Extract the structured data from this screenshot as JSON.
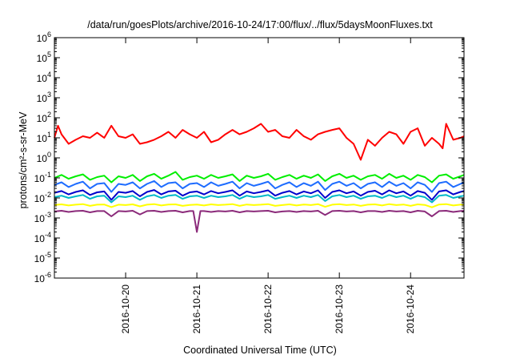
{
  "chart_data": {
    "type": "line",
    "title": "/data/run/goesPlots/archive/2016-10-24/17:00/flux/../flux/5daysMoonFluxes.txt",
    "xlabel": "Coordinated Universal Time (UTC)",
    "ylabel": "protons/cm²-s-sr-MeV",
    "yscale": "log",
    "ylim": [
      1e-06,
      1000000.0
    ],
    "xlim": [
      0.0,
      5.75
    ],
    "x_unit": "days from 2016-10-19 00:00 UTC",
    "x_ticks": [
      {
        "value": 1,
        "label": "2016-10-20"
      },
      {
        "value": 2,
        "label": "2016-10-21"
      },
      {
        "value": 3,
        "label": "2016-10-22"
      },
      {
        "value": 4,
        "label": "2016-10-23"
      },
      {
        "value": 5,
        "label": "2016-10-24"
      }
    ],
    "y_ticks": [
      {
        "value": 1e-06,
        "base": "10",
        "exp": "-6"
      },
      {
        "value": 1e-05,
        "base": "10",
        "exp": "-5"
      },
      {
        "value": 0.0001,
        "base": "10",
        "exp": "-4"
      },
      {
        "value": 0.001,
        "base": "10",
        "exp": "-3"
      },
      {
        "value": 0.01,
        "base": "10",
        "exp": "-2"
      },
      {
        "value": 0.1,
        "base": "10",
        "exp": "-1"
      },
      {
        "value": 1.0,
        "base": "10",
        "exp": "0"
      },
      {
        "value": 10.0,
        "base": "10",
        "exp": "1"
      },
      {
        "value": 100.0,
        "base": "10",
        "exp": "2"
      },
      {
        "value": 1000.0,
        "base": "10",
        "exp": "3"
      },
      {
        "value": 10000.0,
        "base": "10",
        "exp": "4"
      },
      {
        "value": 100000.0,
        "base": "10",
        "exp": "5"
      },
      {
        "value": 1000000.0,
        "base": "10",
        "exp": "6"
      }
    ],
    "grid": false,
    "legend": "none",
    "series": [
      {
        "color": "#ff0000",
        "x": [
          0.0,
          0.05,
          0.1,
          0.2,
          0.3,
          0.4,
          0.5,
          0.6,
          0.7,
          0.8,
          0.9,
          1.0,
          1.1,
          1.2,
          1.3,
          1.4,
          1.5,
          1.6,
          1.7,
          1.8,
          1.9,
          2.0,
          2.1,
          2.2,
          2.3,
          2.4,
          2.5,
          2.6,
          2.7,
          2.8,
          2.9,
          3.0,
          3.1,
          3.2,
          3.3,
          3.4,
          3.5,
          3.6,
          3.7,
          3.8,
          3.9,
          4.0,
          4.1,
          4.2,
          4.3,
          4.4,
          4.5,
          4.6,
          4.7,
          4.8,
          4.9,
          5.0,
          5.1,
          5.2,
          5.3,
          5.4,
          5.45,
          5.5,
          5.6,
          5.7,
          5.75
        ],
        "values": [
          10,
          40,
          15,
          5,
          8,
          12,
          10,
          18,
          10,
          40,
          12,
          10,
          15,
          5,
          6,
          8,
          12,
          20,
          10,
          25,
          15,
          10,
          20,
          6,
          8,
          15,
          25,
          15,
          20,
          30,
          50,
          20,
          25,
          12,
          10,
          25,
          12,
          8,
          15,
          20,
          25,
          30,
          10,
          5,
          0.8,
          8,
          4,
          10,
          20,
          15,
          5,
          20,
          30,
          4,
          10,
          5,
          3,
          50,
          8,
          10,
          12
        ]
      },
      {
        "color": "#00ee00",
        "x": [
          0.0,
          0.1,
          0.2,
          0.3,
          0.4,
          0.5,
          0.6,
          0.7,
          0.8,
          0.9,
          1.0,
          1.1,
          1.2,
          1.3,
          1.4,
          1.5,
          1.6,
          1.7,
          1.8,
          1.9,
          2.0,
          2.1,
          2.2,
          2.3,
          2.4,
          2.5,
          2.6,
          2.7,
          2.8,
          2.9,
          3.0,
          3.1,
          3.2,
          3.3,
          3.4,
          3.5,
          3.6,
          3.7,
          3.8,
          3.9,
          4.0,
          4.1,
          4.2,
          4.3,
          4.4,
          4.5,
          4.6,
          4.7,
          4.8,
          4.9,
          5.0,
          5.1,
          5.2,
          5.3,
          5.4,
          5.5,
          5.6,
          5.7,
          5.75
        ],
        "values": [
          0.1,
          0.14,
          0.09,
          0.12,
          0.15,
          0.08,
          0.11,
          0.13,
          0.06,
          0.12,
          0.1,
          0.14,
          0.07,
          0.12,
          0.16,
          0.09,
          0.13,
          0.2,
          0.08,
          0.11,
          0.13,
          0.09,
          0.14,
          0.1,
          0.12,
          0.15,
          0.07,
          0.13,
          0.1,
          0.12,
          0.16,
          0.08,
          0.11,
          0.14,
          0.09,
          0.13,
          0.1,
          0.15,
          0.07,
          0.12,
          0.16,
          0.1,
          0.13,
          0.08,
          0.12,
          0.14,
          0.09,
          0.16,
          0.1,
          0.13,
          0.08,
          0.14,
          0.11,
          0.06,
          0.13,
          0.15,
          0.09,
          0.12,
          0.14
        ]
      },
      {
        "color": "#1e6cff",
        "x": [
          0.0,
          0.1,
          0.2,
          0.3,
          0.4,
          0.5,
          0.6,
          0.7,
          0.8,
          0.9,
          1.0,
          1.1,
          1.2,
          1.3,
          1.4,
          1.5,
          1.6,
          1.7,
          1.8,
          1.9,
          2.0,
          2.1,
          2.2,
          2.3,
          2.4,
          2.5,
          2.6,
          2.7,
          2.8,
          2.9,
          3.0,
          3.1,
          3.2,
          3.3,
          3.4,
          3.5,
          3.6,
          3.7,
          3.8,
          3.9,
          4.0,
          4.1,
          4.2,
          4.3,
          4.4,
          4.5,
          4.6,
          4.7,
          4.8,
          4.9,
          5.0,
          5.1,
          5.2,
          5.3,
          5.4,
          5.5,
          5.6,
          5.7,
          5.75
        ],
        "values": [
          0.045,
          0.06,
          0.035,
          0.05,
          0.065,
          0.03,
          0.05,
          0.055,
          0.02,
          0.05,
          0.045,
          0.06,
          0.03,
          0.05,
          0.07,
          0.035,
          0.055,
          0.06,
          0.03,
          0.05,
          0.055,
          0.035,
          0.06,
          0.04,
          0.05,
          0.065,
          0.03,
          0.055,
          0.04,
          0.05,
          0.065,
          0.03,
          0.045,
          0.06,
          0.035,
          0.055,
          0.04,
          0.065,
          0.025,
          0.05,
          0.065,
          0.04,
          0.055,
          0.03,
          0.05,
          0.06,
          0.035,
          0.065,
          0.04,
          0.055,
          0.03,
          0.06,
          0.045,
          0.02,
          0.055,
          0.065,
          0.035,
          0.05,
          0.06
        ]
      },
      {
        "color": "#0000cc",
        "x": [
          0.0,
          0.1,
          0.2,
          0.3,
          0.4,
          0.5,
          0.6,
          0.7,
          0.8,
          0.9,
          1.0,
          1.1,
          1.2,
          1.3,
          1.4,
          1.5,
          1.6,
          1.7,
          1.8,
          1.9,
          2.0,
          2.1,
          2.2,
          2.3,
          2.4,
          2.5,
          2.6,
          2.7,
          2.8,
          2.9,
          3.0,
          3.1,
          3.2,
          3.3,
          3.4,
          3.5,
          3.6,
          3.7,
          3.8,
          3.9,
          4.0,
          4.1,
          4.2,
          4.3,
          4.4,
          4.5,
          4.6,
          4.7,
          4.8,
          4.9,
          5.0,
          5.1,
          5.2,
          5.3,
          5.4,
          5.5,
          5.6,
          5.7,
          5.75
        ],
        "values": [
          0.018,
          0.022,
          0.015,
          0.02,
          0.024,
          0.014,
          0.019,
          0.021,
          0.008,
          0.02,
          0.018,
          0.022,
          0.012,
          0.02,
          0.025,
          0.015,
          0.021,
          0.023,
          0.013,
          0.019,
          0.021,
          0.015,
          0.022,
          0.017,
          0.02,
          0.024,
          0.013,
          0.021,
          0.017,
          0.02,
          0.024,
          0.013,
          0.018,
          0.022,
          0.015,
          0.021,
          0.017,
          0.024,
          0.01,
          0.02,
          0.024,
          0.017,
          0.021,
          0.013,
          0.02,
          0.023,
          0.015,
          0.024,
          0.017,
          0.021,
          0.013,
          0.022,
          0.018,
          0.008,
          0.021,
          0.024,
          0.015,
          0.02,
          0.022
        ]
      },
      {
        "color": "#00b8c8",
        "x": [
          0.0,
          0.1,
          0.2,
          0.3,
          0.4,
          0.5,
          0.6,
          0.7,
          0.8,
          0.9,
          1.0,
          1.1,
          1.2,
          1.3,
          1.4,
          1.5,
          1.6,
          1.7,
          1.8,
          1.9,
          2.0,
          2.1,
          2.2,
          2.3,
          2.4,
          2.5,
          2.6,
          2.7,
          2.8,
          2.9,
          3.0,
          3.1,
          3.2,
          3.3,
          3.4,
          3.5,
          3.6,
          3.7,
          3.8,
          3.9,
          4.0,
          4.1,
          4.2,
          4.3,
          4.4,
          4.5,
          4.6,
          4.7,
          4.8,
          4.9,
          5.0,
          5.1,
          5.2,
          5.3,
          5.4,
          5.5,
          5.6,
          5.7,
          5.75
        ],
        "values": [
          0.011,
          0.013,
          0.01,
          0.012,
          0.014,
          0.009,
          0.012,
          0.013,
          0.006,
          0.012,
          0.011,
          0.013,
          0.008,
          0.012,
          0.014,
          0.01,
          0.013,
          0.014,
          0.009,
          0.012,
          0.013,
          0.01,
          0.013,
          0.011,
          0.012,
          0.014,
          0.009,
          0.013,
          0.011,
          0.012,
          0.014,
          0.009,
          0.011,
          0.013,
          0.01,
          0.013,
          0.011,
          0.014,
          0.007,
          0.012,
          0.014,
          0.011,
          0.013,
          0.009,
          0.012,
          0.013,
          0.01,
          0.014,
          0.011,
          0.013,
          0.009,
          0.013,
          0.011,
          0.006,
          0.013,
          0.014,
          0.01,
          0.012,
          0.013
        ]
      },
      {
        "color": "#ffff00",
        "x": [
          0.0,
          0.1,
          0.2,
          0.3,
          0.4,
          0.5,
          0.6,
          0.7,
          0.8,
          0.9,
          1.0,
          1.1,
          1.2,
          1.3,
          1.4,
          1.5,
          1.6,
          1.7,
          1.8,
          1.9,
          2.0,
          2.1,
          2.2,
          2.3,
          2.4,
          2.5,
          2.6,
          2.7,
          2.8,
          2.9,
          3.0,
          3.1,
          3.2,
          3.3,
          3.4,
          3.5,
          3.6,
          3.7,
          3.8,
          3.9,
          4.0,
          4.1,
          4.2,
          4.3,
          4.4,
          4.5,
          4.6,
          4.7,
          4.8,
          4.9,
          5.0,
          5.1,
          5.2,
          5.3,
          5.4,
          5.5,
          5.6,
          5.7,
          5.75
        ],
        "values": [
          0.0045,
          0.0048,
          0.0042,
          0.0046,
          0.0049,
          0.004,
          0.0046,
          0.0047,
          0.0035,
          0.0046,
          0.0044,
          0.0048,
          0.0038,
          0.0046,
          0.0049,
          0.0042,
          0.0047,
          0.0048,
          0.004,
          0.0045,
          0.0047,
          0.0042,
          0.0048,
          0.0044,
          0.0046,
          0.0049,
          0.004,
          0.0047,
          0.0044,
          0.0046,
          0.0049,
          0.004,
          0.0044,
          0.0048,
          0.0042,
          0.0047,
          0.0044,
          0.0049,
          0.0036,
          0.0046,
          0.0049,
          0.0044,
          0.0047,
          0.004,
          0.0046,
          0.0048,
          0.0042,
          0.0049,
          0.0044,
          0.0047,
          0.004,
          0.0048,
          0.0045,
          0.0034,
          0.0047,
          0.0049,
          0.0042,
          0.0046,
          0.0048
        ]
      },
      {
        "color": "#8b2a7a",
        "x": [
          0.0,
          0.1,
          0.2,
          0.3,
          0.4,
          0.5,
          0.6,
          0.7,
          0.8,
          0.9,
          1.0,
          1.1,
          1.2,
          1.3,
          1.4,
          1.5,
          1.6,
          1.7,
          1.8,
          1.9,
          1.95,
          2.0,
          2.05,
          2.1,
          2.2,
          2.3,
          2.4,
          2.5,
          2.6,
          2.7,
          2.8,
          2.9,
          3.0,
          3.1,
          3.2,
          3.3,
          3.4,
          3.5,
          3.6,
          3.7,
          3.8,
          3.9,
          4.0,
          4.1,
          4.2,
          4.3,
          4.4,
          4.5,
          4.6,
          4.7,
          4.8,
          4.9,
          5.0,
          5.1,
          5.2,
          5.3,
          5.4,
          5.5,
          5.6,
          5.7,
          5.75
        ],
        "values": [
          0.0021,
          0.0023,
          0.002,
          0.0022,
          0.0023,
          0.0019,
          0.0022,
          0.0022,
          0.0012,
          0.0022,
          0.0021,
          0.0023,
          0.0015,
          0.0022,
          0.0023,
          0.002,
          0.0022,
          0.0023,
          0.0019,
          0.0022,
          0.0022,
          0.0002,
          0.0022,
          0.0022,
          0.002,
          0.0022,
          0.0021,
          0.0023,
          0.0019,
          0.0022,
          0.0021,
          0.0022,
          0.0023,
          0.0019,
          0.0021,
          0.0022,
          0.002,
          0.0022,
          0.0021,
          0.0023,
          0.0014,
          0.0022,
          0.0023,
          0.0021,
          0.0022,
          0.0019,
          0.0022,
          0.0022,
          0.002,
          0.0023,
          0.0021,
          0.0022,
          0.0019,
          0.0023,
          0.0021,
          0.0012,
          0.0022,
          0.0023,
          0.002,
          0.0022,
          0.0023
        ]
      }
    ]
  }
}
